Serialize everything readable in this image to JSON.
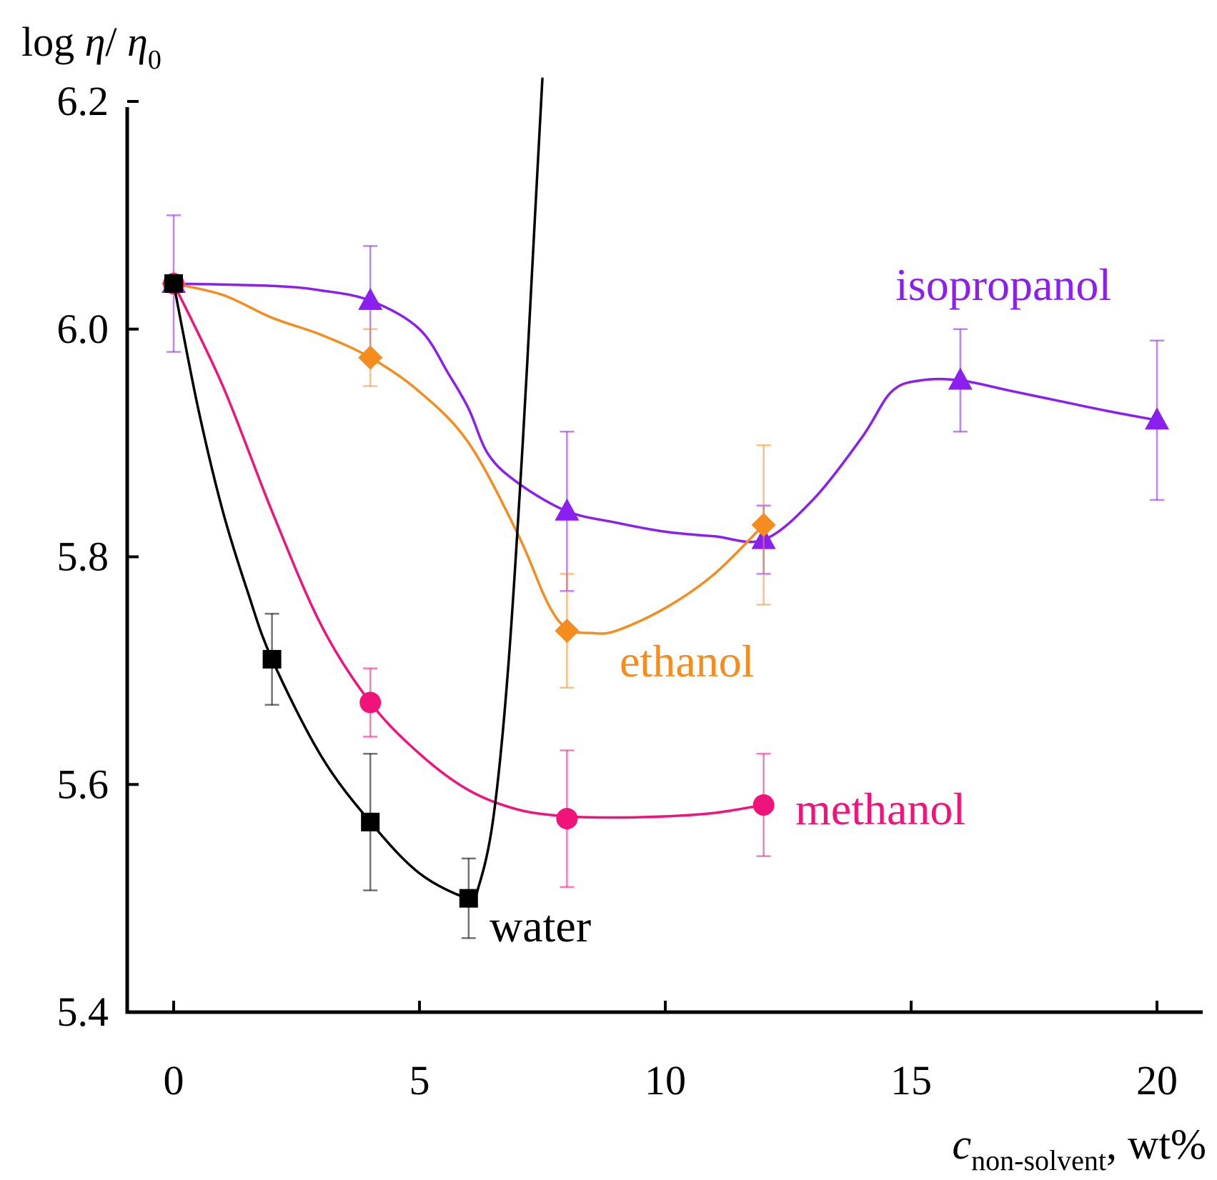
{
  "chart_data": {
    "type": "line",
    "ylabel": {
      "main": "log ",
      "eta": "η",
      "slash": "/ ",
      "eta0": "η",
      "sub0": "0"
    },
    "xlabel": {
      "c": "c",
      "sub": "non-solvent",
      "unit": ", wt%"
    },
    "xlim": [
      -2,
      21
    ],
    "ylim": [
      5.4,
      6.2
    ],
    "xticks": [
      0,
      5,
      10,
      15,
      20
    ],
    "xtick_labels": [
      "0",
      "5",
      "10",
      "15",
      "20"
    ],
    "yticks": [
      5.4,
      5.6,
      5.8,
      6.0,
      6.2
    ],
    "ytick_labels": [
      "5.4",
      "5.6",
      "5.8",
      "6.0",
      "6.2"
    ],
    "series": [
      {
        "name": "isopropanol",
        "label": "isopropanol",
        "color": "#8a1ff0",
        "marker": "triangle",
        "x": [
          0,
          4,
          8,
          12,
          16,
          20
        ],
        "y": [
          6.04,
          6.025,
          5.84,
          5.815,
          5.955,
          5.92
        ],
        "err": [
          0.06,
          0.048,
          0.07,
          0.03,
          0.045,
          0.07
        ],
        "curve": [
          [
            0,
            6.04
          ],
          [
            2,
            6.038
          ],
          [
            3,
            6.034
          ],
          [
            4,
            6.025
          ],
          [
            5,
            6.0
          ],
          [
            5.6,
            5.96
          ],
          [
            6,
            5.93
          ],
          [
            6.4,
            5.89
          ],
          [
            7,
            5.865
          ],
          [
            8,
            5.84
          ],
          [
            9,
            5.83
          ],
          [
            10,
            5.822
          ],
          [
            11,
            5.818
          ],
          [
            12,
            5.815
          ],
          [
            13,
            5.85
          ],
          [
            14,
            5.905
          ],
          [
            14.6,
            5.945
          ],
          [
            15.2,
            5.955
          ],
          [
            16,
            5.955
          ],
          [
            17,
            5.946
          ],
          [
            18,
            5.937
          ],
          [
            19,
            5.928
          ],
          [
            20,
            5.92
          ]
        ]
      },
      {
        "name": "ethanol",
        "label": "ethanol",
        "color": "#f58c1e",
        "marker": "diamond",
        "x": [
          0,
          4,
          8,
          12
        ],
        "y": [
          6.04,
          5.975,
          5.735,
          5.828
        ],
        "err": [
          0.0,
          0.025,
          0.05,
          0.07
        ],
        "curve": [
          [
            0,
            6.04
          ],
          [
            1,
            6.03
          ],
          [
            2,
            6.01
          ],
          [
            3,
            5.995
          ],
          [
            4,
            5.975
          ],
          [
            5,
            5.945
          ],
          [
            6,
            5.9
          ],
          [
            7,
            5.82
          ],
          [
            7.6,
            5.76
          ],
          [
            8,
            5.737
          ],
          [
            8.5,
            5.733
          ],
          [
            9,
            5.735
          ],
          [
            10,
            5.755
          ],
          [
            11,
            5.785
          ],
          [
            12,
            5.828
          ]
        ]
      },
      {
        "name": "methanol",
        "label": "methanol",
        "color": "#f0147a",
        "marker": "circle",
        "x": [
          0,
          4,
          8,
          12
        ],
        "y": [
          6.04,
          5.672,
          5.57,
          5.582
        ],
        "err": [
          0.0,
          0.03,
          0.06,
          0.045
        ],
        "curve": [
          [
            0,
            6.04
          ],
          [
            1,
            5.95
          ],
          [
            2,
            5.84
          ],
          [
            3,
            5.74
          ],
          [
            4,
            5.672
          ],
          [
            5,
            5.627
          ],
          [
            6,
            5.595
          ],
          [
            7,
            5.578
          ],
          [
            8,
            5.572
          ],
          [
            9,
            5.571
          ],
          [
            10,
            5.572
          ],
          [
            11,
            5.575
          ],
          [
            12,
            5.582
          ]
        ]
      },
      {
        "name": "water",
        "label": "water",
        "color": "#000000",
        "marker": "square",
        "x": [
          0,
          2,
          4,
          6
        ],
        "y": [
          6.04,
          5.71,
          5.567,
          5.5
        ],
        "err": [
          0.0,
          0.04,
          0.06,
          0.035
        ],
        "curve": [
          [
            0,
            6.04
          ],
          [
            0.5,
            5.93
          ],
          [
            1,
            5.84
          ],
          [
            1.5,
            5.77
          ],
          [
            2,
            5.71
          ],
          [
            3,
            5.625
          ],
          [
            4,
            5.567
          ],
          [
            5,
            5.522
          ],
          [
            6,
            5.5
          ],
          [
            6.2,
            5.51
          ],
          [
            6.5,
            5.57
          ],
          [
            6.8,
            5.7
          ],
          [
            7.1,
            5.9
          ],
          [
            7.35,
            6.1
          ],
          [
            7.5,
            6.22
          ]
        ]
      }
    ]
  }
}
